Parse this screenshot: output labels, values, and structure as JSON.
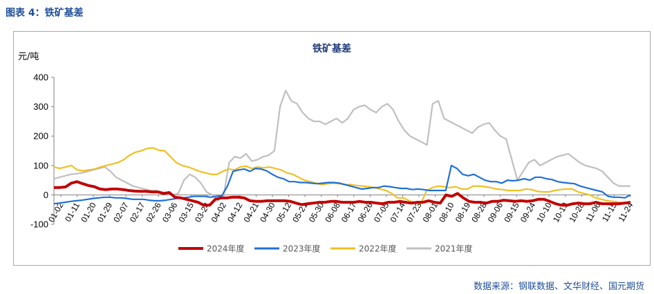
{
  "figure_title": "图表 4：铁矿基差",
  "source": "数据来源：钢联数据、文华财经、国元期货",
  "chart_data": {
    "type": "line",
    "title": "铁矿基差",
    "ylabel": "元/吨",
    "ylim": [
      -100,
      400
    ],
    "yticks": [
      -100,
      0,
      100,
      200,
      300,
      400
    ],
    "grid": false,
    "legend_position": "bottom",
    "x_labels": [
      "01-02",
      "01-11",
      "01-20",
      "01-29",
      "02-07",
      "02-17",
      "02-26",
      "03-06",
      "03-15",
      "03-24",
      "04-02",
      "04-12",
      "04-21",
      "04-30",
      "05-12",
      "05-21",
      "05-30",
      "06-08",
      "06-17",
      "06-26",
      "07-05",
      "07-14",
      "07-23",
      "08-01",
      "08-10",
      "08-19",
      "08-28",
      "09-06",
      "09-15",
      "09-24",
      "10-10",
      "10-19",
      "10-28",
      "11-06",
      "11-15",
      "11-24"
    ],
    "series": [
      {
        "name": "2024年度",
        "color": "#c00000",
        "values": [
          25,
          25,
          27,
          40,
          45,
          38,
          32,
          28,
          20,
          18,
          20,
          20,
          18,
          15,
          13,
          12,
          12,
          10,
          10,
          5,
          8,
          -8,
          -10,
          -15,
          -20,
          -25,
          -35,
          -35,
          -15,
          -10,
          -10,
          -8,
          -8,
          -10,
          -20,
          -22,
          -22,
          -20,
          -20,
          -20,
          -20,
          -22,
          -28,
          -33,
          -30,
          -28,
          -25,
          -25,
          -22,
          -22,
          -25,
          -25,
          -25,
          -22,
          -25,
          -25,
          -28,
          -30,
          -25,
          -25,
          -22,
          -25,
          -28,
          -25,
          -25,
          -20,
          -25,
          -28,
          0,
          -5,
          5,
          -10,
          -22,
          -25,
          -25,
          -28,
          -22,
          -22,
          -18,
          -20,
          -22,
          -20,
          -22,
          -20,
          -15,
          -15,
          -22,
          -30,
          -35,
          -35,
          -30,
          -28,
          -30,
          -30,
          -25,
          -30,
          -30,
          -30,
          -30,
          -28,
          -25
        ]
      },
      {
        "name": "2023年度",
        "color": "#1f6fd6",
        "values": [
          -30,
          -28,
          -25,
          -22,
          -20,
          -18,
          -15,
          -12,
          -10,
          -8,
          -8,
          -10,
          -10,
          -12,
          -15,
          -15,
          -15,
          -18,
          -20,
          -20,
          -18,
          -15,
          -12,
          -10,
          -8,
          -5,
          -5,
          -5,
          -8,
          -5,
          -3,
          30,
          80,
          85,
          88,
          80,
          90,
          88,
          82,
          70,
          60,
          55,
          45,
          45,
          42,
          42,
          40,
          38,
          40,
          42,
          42,
          40,
          35,
          30,
          25,
          20,
          22,
          25,
          25,
          30,
          28,
          25,
          22,
          22,
          18,
          20,
          18,
          15,
          15,
          15,
          15,
          100,
          90,
          70,
          65,
          70,
          60,
          50,
          45,
          45,
          40,
          50,
          48,
          50,
          55,
          50,
          60,
          60,
          55,
          52,
          45,
          42,
          40,
          38,
          30,
          25,
          20,
          15,
          10,
          -5,
          -8,
          -8,
          -10,
          0
        ]
      },
      {
        "name": "2022年度",
        "color": "#f0c020",
        "values": [
          95,
          90,
          95,
          100,
          85,
          82,
          85,
          88,
          95,
          100,
          105,
          110,
          120,
          135,
          145,
          150,
          158,
          160,
          152,
          150,
          130,
          110,
          100,
          95,
          88,
          80,
          75,
          70,
          70,
          80,
          88,
          85,
          95,
          98,
          90,
          95,
          92,
          95,
          90,
          85,
          75,
          70,
          60,
          50,
          45,
          40,
          35,
          38,
          40,
          38,
          35,
          35,
          32,
          30,
          28,
          25,
          20,
          15,
          5,
          -10,
          -10,
          -20,
          -25,
          -30,
          15,
          25,
          30,
          28,
          25,
          28,
          20,
          20,
          30,
          30,
          28,
          25,
          20,
          18,
          15,
          15,
          15,
          20,
          18,
          12,
          10,
          10,
          15,
          18,
          20,
          20,
          10,
          5,
          0,
          -10,
          -15,
          -20,
          -22,
          -25,
          -28,
          -25
        ]
      },
      {
        "name": "2021年度",
        "color": "#bfbfbf",
        "values": [
          55,
          60,
          65,
          70,
          72,
          75,
          80,
          85,
          90,
          95,
          80,
          60,
          50,
          40,
          30,
          25,
          20,
          15,
          15,
          10,
          5,
          0,
          5,
          50,
          70,
          60,
          40,
          10,
          0,
          -20,
          -5,
          110,
          130,
          125,
          140,
          115,
          120,
          130,
          135,
          150,
          300,
          355,
          320,
          310,
          280,
          260,
          250,
          250,
          240,
          250,
          260,
          245,
          260,
          290,
          300,
          305,
          290,
          280,
          300,
          310,
          290,
          250,
          220,
          200,
          190,
          180,
          170,
          310,
          320,
          260,
          250,
          240,
          230,
          220,
          210,
          230,
          240,
          245,
          220,
          200,
          190,
          120,
          50,
          80,
          110,
          120,
          100,
          110,
          120,
          130,
          135,
          140,
          125,
          110,
          100,
          95,
          90,
          80,
          60,
          40,
          30,
          30,
          30
        ]
      }
    ]
  }
}
